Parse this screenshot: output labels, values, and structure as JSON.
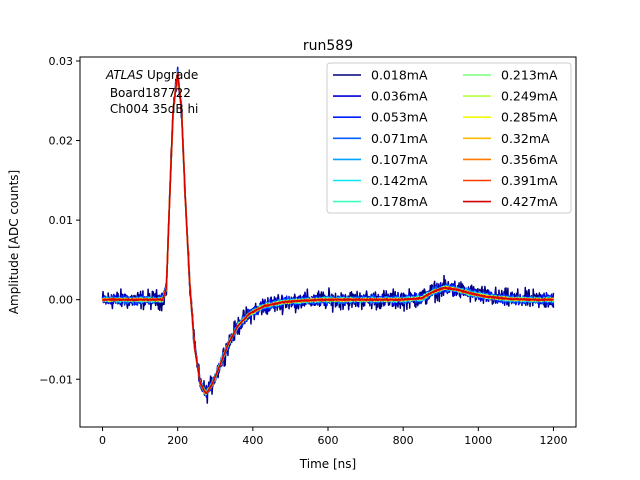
{
  "chart_data": {
    "type": "line",
    "title": "run589",
    "xlabel": "Time [ns]",
    "ylabel": "Amplitude [ADC counts]",
    "xlim": [
      -60,
      1260
    ],
    "ylim": [
      -0.016,
      0.0305
    ],
    "xticks": [
      0,
      200,
      400,
      600,
      800,
      1000,
      1200
    ],
    "xtick_labels": [
      "0",
      "200",
      "400",
      "600",
      "800",
      "1000",
      "1200"
    ],
    "yticks": [
      -0.01,
      0.0,
      0.01,
      0.02,
      0.03
    ],
    "ytick_labels": [
      "−0.01",
      "0.00",
      "0.01",
      "0.02",
      "0.03"
    ],
    "grid": false,
    "legend_placement": "upper-right",
    "legend_columns": 2,
    "annotation": {
      "italic": "ATLAS",
      "normal": " Upgrade",
      "line2": " Board187722",
      "line3": " Ch004 35dB hi"
    },
    "pulse_shape": {
      "baseline": 0.0,
      "x": [
        0,
        160,
        170,
        178,
        188,
        200,
        210,
        220,
        232,
        245,
        260,
        275,
        290,
        310,
        335,
        360,
        390,
        430,
        480,
        540,
        600,
        700,
        800,
        850,
        880,
        910,
        940,
        980,
        1020,
        1080,
        1140,
        1200
      ],
      "y": [
        0.0,
        0.0,
        0.0015,
        0.012,
        0.024,
        0.0285,
        0.024,
        0.013,
        0.002,
        -0.006,
        -0.0105,
        -0.0118,
        -0.0108,
        -0.0085,
        -0.0055,
        -0.0033,
        -0.0018,
        -0.0008,
        -0.0003,
        -0.0001,
        0.0,
        0.0,
        0.0,
        0.0002,
        0.001,
        0.0015,
        0.0013,
        0.0008,
        0.0004,
        0.0001,
        0.0,
        0.0
      ]
    },
    "series": [
      {
        "name": "0.018mA",
        "color": "#00007f",
        "noise": 0.00075
      },
      {
        "name": "0.036mA",
        "color": "#0000d5",
        "noise": 0.00045
      },
      {
        "name": "0.053mA",
        "color": "#001cff",
        "noise": 0.00035
      },
      {
        "name": "0.071mA",
        "color": "#0060ff",
        "noise": 0.00028
      },
      {
        "name": "0.107mA",
        "color": "#00a4ff",
        "noise": 0.00022
      },
      {
        "name": "0.142mA",
        "color": "#08e8ee",
        "noise": 0.00018
      },
      {
        "name": "0.178mA",
        "color": "#3dffb9",
        "noise": 0.00015
      },
      {
        "name": "0.213mA",
        "color": "#79ff7c",
        "noise": 0.00013
      },
      {
        "name": "0.249mA",
        "color": "#b6ff40",
        "noise": 0.00011
      },
      {
        "name": "0.285mA",
        "color": "#f1fc06",
        "noise": 0.0001
      },
      {
        "name": "0.32mA",
        "color": "#ffb900",
        "noise": 9e-05
      },
      {
        "name": "0.356mA",
        "color": "#ff7a00",
        "noise": 8e-05
      },
      {
        "name": "0.391mA",
        "color": "#ff3a00",
        "noise": 7e-05
      },
      {
        "name": "0.427mA",
        "color": "#d50000",
        "noise": 6e-05
      }
    ]
  }
}
